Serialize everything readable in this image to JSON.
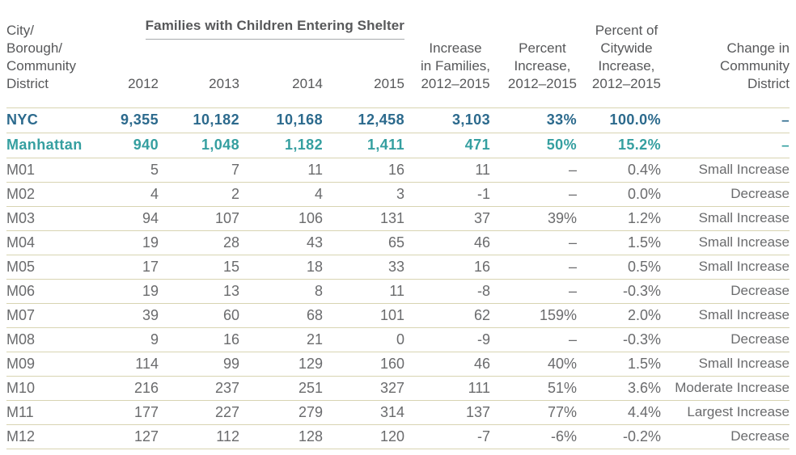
{
  "colors": {
    "nyc_row": "#2c6a8d",
    "manhattan_row": "#359fa0",
    "header_text": "#57585a",
    "body_text": "#6a6b6d",
    "row_border": "#d8d4b2",
    "title_underline": "#a8aaad"
  },
  "table": {
    "group_header": "Families with Children Entering Shelter",
    "corner_header": "City/\nBorough/\nCommunity\nDistrict",
    "year_columns": [
      "2012",
      "2013",
      "2014",
      "2015"
    ],
    "stat_columns": [
      "Increase\nin Families,\n2012–2015",
      "Percent\nIncrease,\n2012–2015",
      "Percent of\nCitywide\nIncrease,\n2012–2015",
      "Change in\nCommunity\nDistrict"
    ],
    "rows": [
      {
        "label": "NYC",
        "style": "nyc",
        "cells": [
          "9,355",
          "10,182",
          "10,168",
          "12,458",
          "3,103",
          "33%",
          "100.0%",
          "–"
        ]
      },
      {
        "label": "Manhattan",
        "style": "manhattan",
        "cells": [
          "940",
          "1,048",
          "1,182",
          "1,411",
          "471",
          "50%",
          "15.2%",
          "–"
        ]
      },
      {
        "label": "M01",
        "style": "district",
        "cells": [
          "5",
          "7",
          "11",
          "16",
          "11",
          "–",
          "0.4%",
          "Small Increase"
        ]
      },
      {
        "label": "M02",
        "style": "district",
        "cells": [
          "4",
          "2",
          "4",
          "3",
          "-1",
          "–",
          "0.0%",
          "Decrease"
        ]
      },
      {
        "label": "M03",
        "style": "district",
        "cells": [
          "94",
          "107",
          "106",
          "131",
          "37",
          "39%",
          "1.2%",
          "Small Increase"
        ]
      },
      {
        "label": "M04",
        "style": "district",
        "cells": [
          "19",
          "28",
          "43",
          "65",
          "46",
          "–",
          "1.5%",
          "Small Increase"
        ]
      },
      {
        "label": "M05",
        "style": "district",
        "cells": [
          "17",
          "15",
          "18",
          "33",
          "16",
          "–",
          "0.5%",
          "Small Increase"
        ]
      },
      {
        "label": "M06",
        "style": "district",
        "cells": [
          "19",
          "13",
          "8",
          "11",
          "-8",
          "–",
          "-0.3%",
          "Decrease"
        ]
      },
      {
        "label": "M07",
        "style": "district",
        "cells": [
          "39",
          "60",
          "68",
          "101",
          "62",
          "159%",
          "2.0%",
          "Small Increase"
        ]
      },
      {
        "label": "M08",
        "style": "district",
        "cells": [
          "9",
          "16",
          "21",
          "0",
          "-9",
          "–",
          "-0.3%",
          "Decrease"
        ]
      },
      {
        "label": "M09",
        "style": "district",
        "cells": [
          "114",
          "99",
          "129",
          "160",
          "46",
          "40%",
          "1.5%",
          "Small Increase"
        ]
      },
      {
        "label": "M10",
        "style": "district",
        "cells": [
          "216",
          "237",
          "251",
          "327",
          "111",
          "51%",
          "3.6%",
          "Moderate Increase"
        ]
      },
      {
        "label": "M11",
        "style": "district",
        "cells": [
          "177",
          "227",
          "279",
          "314",
          "137",
          "77%",
          "4.4%",
          "Largest Increase"
        ]
      },
      {
        "label": "M12",
        "style": "district",
        "cells": [
          "127",
          "112",
          "128",
          "120",
          "-7",
          "-6%",
          "-0.2%",
          "Decrease"
        ]
      }
    ]
  },
  "chart_data": {
    "type": "table",
    "title": "Families with Children Entering Shelter",
    "columns": [
      "City/Borough/Community District",
      "2012",
      "2013",
      "2014",
      "2015",
      "Increase in Families, 2012–2015",
      "Percent Increase, 2012–2015",
      "Percent of Citywide Increase, 2012–2015",
      "Change in Community District"
    ],
    "rows": [
      [
        "NYC",
        9355,
        10182,
        10168,
        12458,
        3103,
        "33%",
        "100.0%",
        "–"
      ],
      [
        "Manhattan",
        940,
        1048,
        1182,
        1411,
        471,
        "50%",
        "15.2%",
        "–"
      ],
      [
        "M01",
        5,
        7,
        11,
        16,
        11,
        "–",
        "0.4%",
        "Small Increase"
      ],
      [
        "M02",
        4,
        2,
        4,
        3,
        -1,
        "–",
        "0.0%",
        "Decrease"
      ],
      [
        "M03",
        94,
        107,
        106,
        131,
        37,
        "39%",
        "1.2%",
        "Small Increase"
      ],
      [
        "M04",
        19,
        28,
        43,
        65,
        46,
        "–",
        "1.5%",
        "Small Increase"
      ],
      [
        "M05",
        17,
        15,
        18,
        33,
        16,
        "–",
        "0.5%",
        "Small Increase"
      ],
      [
        "M06",
        19,
        13,
        8,
        11,
        -8,
        "–",
        "-0.3%",
        "Decrease"
      ],
      [
        "M07",
        39,
        60,
        68,
        101,
        62,
        "159%",
        "2.0%",
        "Small Increase"
      ],
      [
        "M08",
        9,
        16,
        21,
        0,
        -9,
        "–",
        "-0.3%",
        "Decrease"
      ],
      [
        "M09",
        114,
        99,
        129,
        160,
        46,
        "40%",
        "1.5%",
        "Small Increase"
      ],
      [
        "M10",
        216,
        237,
        251,
        327,
        111,
        "51%",
        "3.6%",
        "Moderate Increase"
      ],
      [
        "M11",
        177,
        227,
        279,
        314,
        137,
        "77%",
        "4.4%",
        "Largest Increase"
      ],
      [
        "M12",
        127,
        112,
        128,
        120,
        -7,
        "-6%",
        "-0.2%",
        "Decrease"
      ]
    ]
  }
}
